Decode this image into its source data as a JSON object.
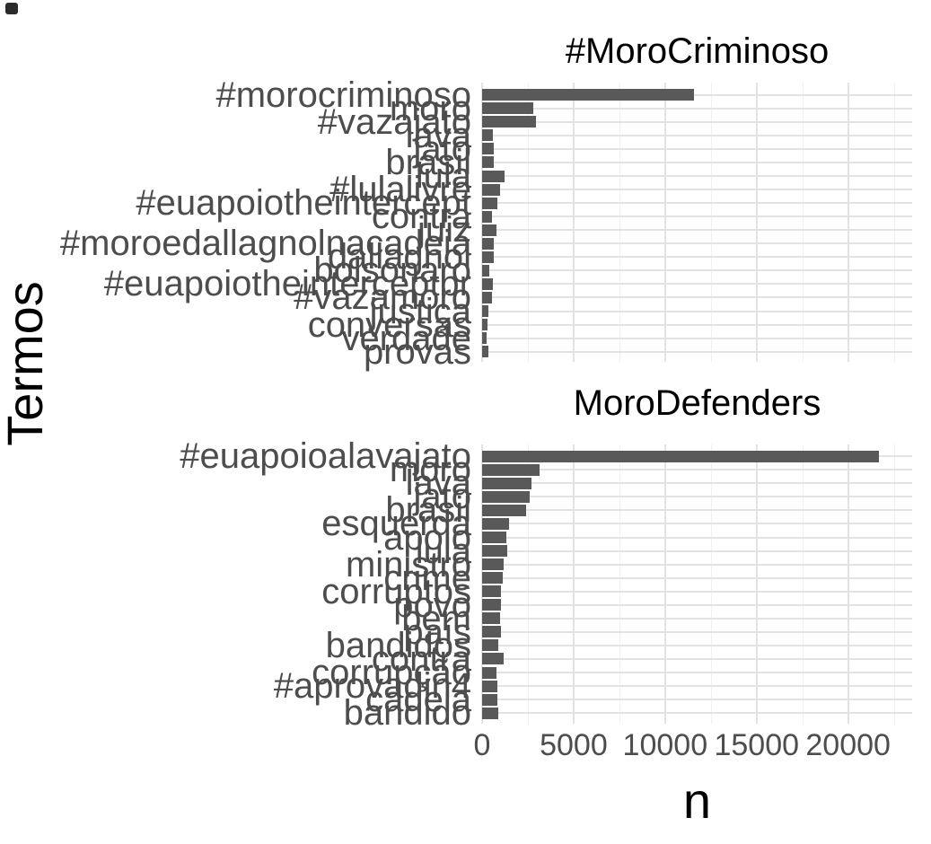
{
  "figure": {
    "y_axis_title": "Termos",
    "x_axis_title": "n"
  },
  "x_axis": {
    "ticks": [
      {
        "label": "0",
        "value": 0
      },
      {
        "label": "5000",
        "value": 5000
      },
      {
        "label": "10000",
        "value": 10000
      },
      {
        "label": "15000",
        "value": 15000
      },
      {
        "label": "20000",
        "value": 20000
      }
    ],
    "minor_gridlines": [
      2500,
      7500,
      12500,
      17500,
      22500
    ],
    "range_rendered": [
      0,
      23500
    ]
  },
  "colors": {
    "bar": "#595959",
    "grid_major": "#e3e3e3",
    "grid_minor": "#f0f0f0",
    "axis_text": "#4d4d4d",
    "title_text": "#000000",
    "background": "#ffffff"
  },
  "chart_data": [
    {
      "type": "bar",
      "orientation": "horizontal",
      "title": "#MoroCriminoso",
      "xlabel": "n",
      "ylabel": "Termos",
      "xlim": [
        0,
        23500
      ],
      "grid": true,
      "legend": false,
      "categories": [
        "#morocriminoso",
        "moro",
        "#vazajato",
        "lava",
        "jato",
        "brasil",
        "lula",
        "#lulalivre",
        "#euapoiotheintercept",
        "contra",
        "juiz",
        "#moroedallagnolnacadeia",
        "dallagnol",
        "bolsonaro",
        "#euapoiotheinterceptbr",
        "#vazamoro",
        "justiça",
        "conversas",
        "verdade",
        "provas"
      ],
      "values": [
        11600,
        2800,
        2950,
        575,
        650,
        650,
        1230,
        980,
        850,
        525,
        800,
        650,
        640,
        380,
        600,
        525,
        330,
        280,
        250,
        360
      ]
    },
    {
      "type": "bar",
      "orientation": "horizontal",
      "title": "MoroDefenders",
      "xlabel": "n",
      "ylabel": "Termos",
      "xlim": [
        0,
        23500
      ],
      "grid": true,
      "legend": false,
      "categories": [
        "#euapoioalavajato",
        "moro",
        "lava",
        "jato",
        "brasil",
        "esquerda",
        "apoio",
        "lula",
        "ministro",
        "crime",
        "corruptos",
        "povo",
        "bem",
        "país",
        "bandidos",
        "contra",
        "corrupção",
        "#aprovadin4",
        "cadeia",
        "bandido"
      ],
      "values": [
        21700,
        3150,
        2700,
        2600,
        2400,
        1490,
        1340,
        1390,
        1180,
        1120,
        1020,
        1020,
        970,
        1020,
        880,
        1160,
        790,
        820,
        820,
        900
      ]
    }
  ]
}
